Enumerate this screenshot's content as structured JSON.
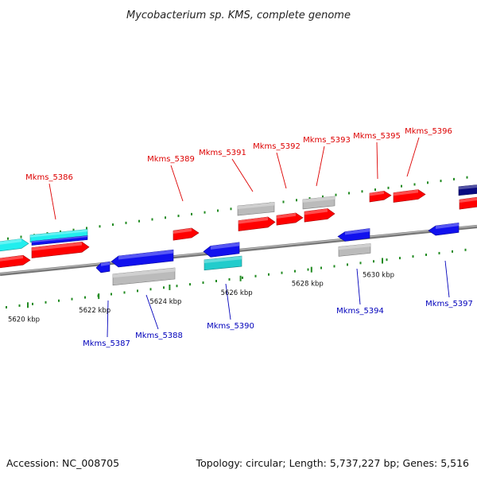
{
  "title": "Mycobacterium sp. KMS, complete genome",
  "footer": {
    "accession": "Accession: NC_008705",
    "summary": "Topology: circular; Length: 5,737,227 bp; Genes: 5,516"
  },
  "scale": {
    "unit": "kbp",
    "labels": [
      {
        "kbp": 5620,
        "text": "5620 kbp"
      },
      {
        "kbp": 5622,
        "text": "5622 kbp"
      },
      {
        "kbp": 5624,
        "text": "5624 kbp"
      },
      {
        "kbp": 5626,
        "text": "5626 kbp"
      },
      {
        "kbp": 5628,
        "text": "5628 kbp"
      },
      {
        "kbp": 5630,
        "text": "5630 kbp"
      }
    ]
  },
  "colors": {
    "forward_label": "#dd0000",
    "reverse_label": "#0000bb",
    "forward_cds": "#ff0000",
    "reverse_cds": "#1111ee",
    "trna_fwd": "#22eeee",
    "trna_rev": "#22cccc",
    "misc": "#bbbbbb",
    "dark": "#0a0a80",
    "axis": "#888888",
    "tick": "#228b22"
  },
  "gene_labels": {
    "forward": [
      "Mkms_5386",
      "Mkms_5389",
      "Mkms_5391",
      "Mkms_5392",
      "Mkms_5393",
      "Mkms_5395",
      "Mkms_5396"
    ],
    "reverse": [
      "Mkms_5387",
      "Mkms_5388",
      "Mkms_5390",
      "Mkms_5394",
      "Mkms_5397"
    ]
  }
}
